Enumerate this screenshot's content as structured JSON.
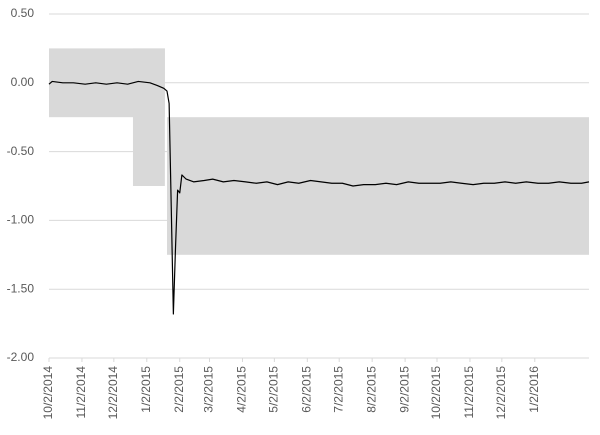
{
  "chart_data": {
    "type": "line",
    "ylim": [
      -2,
      0.5
    ],
    "yticks": [
      {
        "value": 0.5,
        "label": "0.50"
      },
      {
        "value": 0,
        "label": "0.00"
      },
      {
        "value": -0.5,
        "label": "-0.50"
      },
      {
        "value": -1,
        "label": "-1.00"
      },
      {
        "value": -1.5,
        "label": "-1.50"
      },
      {
        "value": -2,
        "label": "-2.00"
      }
    ],
    "xlim": [
      "10/2/2014",
      "2/22/2016"
    ],
    "xticks": [
      "10/2/2014",
      "11/2/2014",
      "12/2/2014",
      "1/2/2015",
      "2/2/2015",
      "3/2/2015",
      "4/2/2015",
      "5/2/2015",
      "6/2/2015",
      "7/2/2015",
      "8/2/2015",
      "9/2/2015",
      "10/2/2015",
      "11/2/2015",
      "12/2/2015",
      "1/2/2016"
    ],
    "grid": true,
    "bands": [
      {
        "start": "10/2/2014",
        "end": "1/19/2015",
        "upper": 0.25,
        "lower": -0.25
      },
      {
        "start": "12/20/2014",
        "end": "1/19/2015",
        "upper": 0.25,
        "lower": -0.75
      },
      {
        "start": "1/21/2015",
        "end": "2/22/2016",
        "upper": -0.25,
        "lower": -1.25
      }
    ],
    "band_color": "#d9d9d9",
    "series": [
      {
        "color": "#000000",
        "x": [
          "10/2/2014",
          "10/5/2014",
          "10/15/2014",
          "10/25/2014",
          "11/5/2014",
          "11/15/2014",
          "11/25/2014",
          "12/5/2014",
          "12/15/2014",
          "12/25/2014",
          "1/5/2015",
          "1/12/2015",
          "1/18/2015",
          "1/21/2015",
          "1/23/2015",
          "1/25/2015",
          "1/27/2015",
          "1/29/2015",
          "1/31/2015",
          "2/2/2015",
          "2/4/2015",
          "2/8/2015",
          "2/15/2015",
          "2/25/2015",
          "3/5/2015",
          "3/15/2015",
          "3/25/2015",
          "4/5/2015",
          "4/15/2015",
          "4/25/2015",
          "5/5/2015",
          "5/15/2015",
          "5/25/2015",
          "6/5/2015",
          "6/15/2015",
          "6/25/2015",
          "7/5/2015",
          "7/15/2015",
          "7/25/2015",
          "8/5/2015",
          "8/15/2015",
          "8/25/2015",
          "9/5/2015",
          "9/15/2015",
          "9/25/2015",
          "10/5/2015",
          "10/15/2015",
          "10/25/2015",
          "11/5/2015",
          "11/15/2015",
          "11/25/2015",
          "12/5/2015",
          "12/15/2015",
          "12/25/2015",
          "1/5/2016",
          "1/15/2016",
          "1/25/2016",
          "2/5/2016",
          "2/15/2016",
          "2/22/2016"
        ],
        "values": [
          -0.01,
          0.01,
          0.0,
          0.0,
          -0.01,
          0.0,
          -0.01,
          0.0,
          -0.01,
          0.01,
          0.0,
          -0.02,
          -0.04,
          -0.06,
          -0.15,
          -0.9,
          -1.68,
          -1.2,
          -0.78,
          -0.8,
          -0.67,
          -0.7,
          -0.72,
          -0.71,
          -0.7,
          -0.72,
          -0.71,
          -0.72,
          -0.73,
          -0.72,
          -0.74,
          -0.72,
          -0.73,
          -0.71,
          -0.72,
          -0.73,
          -0.73,
          -0.75,
          -0.74,
          -0.74,
          -0.73,
          -0.74,
          -0.72,
          -0.73,
          -0.73,
          -0.73,
          -0.72,
          -0.73,
          -0.74,
          -0.73,
          -0.73,
          -0.72,
          -0.73,
          -0.72,
          -0.73,
          -0.73,
          -0.72,
          -0.73,
          -0.73,
          -0.72
        ]
      }
    ]
  }
}
